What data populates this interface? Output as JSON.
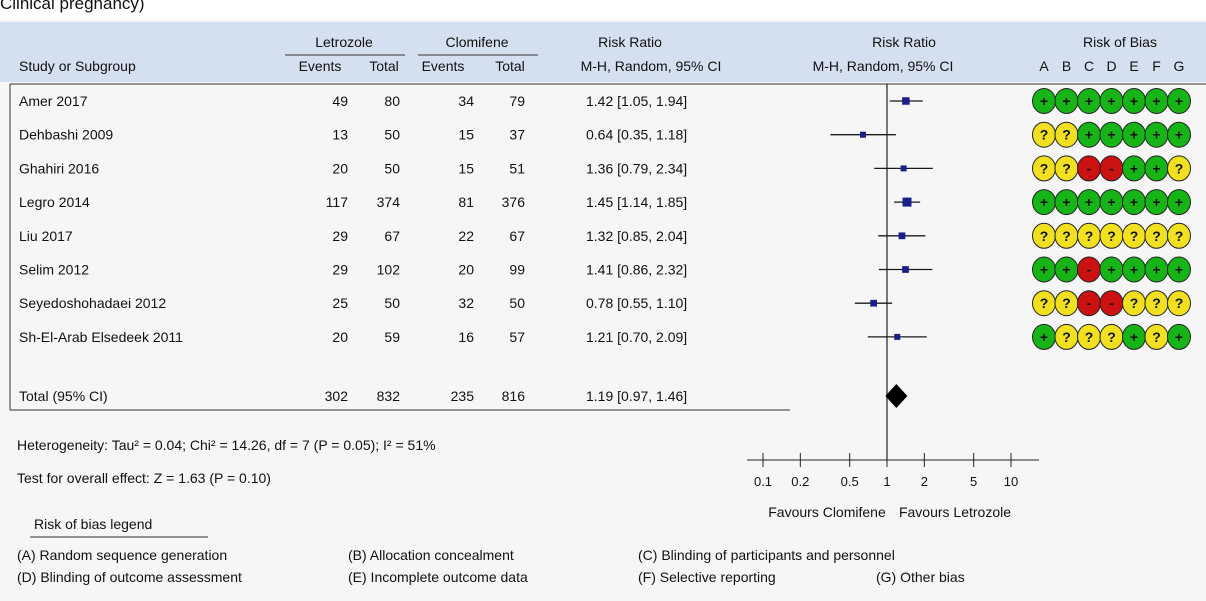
{
  "caption": "Clinical pregnancy)",
  "chart_data": {
    "type": "forest",
    "header": {
      "group_labels": [
        "Letrozole",
        "Clomifene",
        "Risk Ratio",
        "Risk Ratio",
        "Risk of Bias"
      ],
      "col_labels": [
        "Study or Subgroup",
        "Events",
        "Total",
        "Events",
        "Total",
        "M-H, Random, 95% CI",
        "M-H, Random, 95% CI"
      ],
      "bias_letters": [
        "A",
        "B",
        "C",
        "D",
        "E",
        "F",
        "G"
      ]
    },
    "studies": [
      {
        "name": "Amer 2017",
        "e1": "49",
        "t1": "80",
        "e2": "34",
        "t2": "79",
        "ci_text": "1.42 [1.05, 1.94]",
        "rr": 1.42,
        "lo": 1.05,
        "hi": 1.94,
        "weight": 3,
        "bias": [
          "+",
          "+",
          "+",
          "+",
          "+",
          "+",
          "+"
        ]
      },
      {
        "name": "Dehbashi 2009",
        "e1": "13",
        "t1": "50",
        "e2": "15",
        "t2": "37",
        "ci_text": "0.64 [0.35, 1.18]",
        "rr": 0.64,
        "lo": 0.35,
        "hi": 1.18,
        "weight": 2,
        "bias": [
          "?",
          "?",
          "+",
          "+",
          "+",
          "+",
          "+"
        ]
      },
      {
        "name": "Ghahiri 2016",
        "e1": "20",
        "t1": "50",
        "e2": "15",
        "t2": "51",
        "ci_text": "1.36 [0.79, 2.34]",
        "rr": 1.36,
        "lo": 0.79,
        "hi": 2.34,
        "weight": 2,
        "bias": [
          "?",
          "?",
          "-",
          "-",
          "+",
          "+",
          "?"
        ]
      },
      {
        "name": "Legro 2014",
        "e1": "117",
        "t1": "374",
        "e2": "81",
        "t2": "376",
        "ci_text": "1.45 [1.14, 1.85]",
        "rr": 1.45,
        "lo": 1.14,
        "hi": 1.85,
        "weight": 4,
        "bias": [
          "+",
          "+",
          "+",
          "+",
          "+",
          "+",
          "+"
        ]
      },
      {
        "name": "Liu 2017",
        "e1": "29",
        "t1": "67",
        "e2": "22",
        "t2": "67",
        "ci_text": "1.32 [0.85, 2.04]",
        "rr": 1.32,
        "lo": 0.85,
        "hi": 2.04,
        "weight": 2.5,
        "bias": [
          "?",
          "?",
          "?",
          "?",
          "?",
          "?",
          "?"
        ]
      },
      {
        "name": "Selim 2012",
        "e1": "29",
        "t1": "102",
        "e2": "20",
        "t2": "99",
        "ci_text": "1.41 [0.86, 2.32]",
        "rr": 1.41,
        "lo": 0.86,
        "hi": 2.32,
        "weight": 2.5,
        "bias": [
          "+",
          "+",
          "-",
          "+",
          "+",
          "+",
          "+"
        ]
      },
      {
        "name": "Seyedoshohadaei 2012",
        "e1": "25",
        "t1": "50",
        "e2": "32",
        "t2": "50",
        "ci_text": "0.78 [0.55, 1.10]",
        "rr": 0.78,
        "lo": 0.55,
        "hi": 1.1,
        "weight": 2.5,
        "bias": [
          "?",
          "?",
          "-",
          "-",
          "?",
          "?",
          "?"
        ]
      },
      {
        "name": "Sh-El-Arab Elsedeek 2011",
        "e1": "20",
        "t1": "59",
        "e2": "16",
        "t2": "57",
        "ci_text": "1.21 [0.70, 2.09]",
        "rr": 1.21,
        "lo": 0.7,
        "hi": 2.09,
        "weight": 2,
        "bias": [
          "+",
          "?",
          "?",
          "?",
          "+",
          "?",
          "+"
        ]
      }
    ],
    "total": {
      "name": "Total (95% CI)",
      "e1": "302",
      "t1": "832",
      "e2": "235",
      "t2": "816",
      "ci_text": "1.19 [0.97, 1.46]",
      "rr": 1.19,
      "lo": 0.97,
      "hi": 1.46
    },
    "heterogeneity": "Heterogeneity: Tau² = 0.04; Chi² = 14.26, df = 7 (P = 0.05); I² = 51%",
    "overall_effect": "Test for overall effect: Z = 1.63 (P = 0.10)",
    "x_axis": {
      "scale": "log",
      "range": [
        0.1,
        10
      ],
      "ticks": [
        0.1,
        0.2,
        0.5,
        1,
        2,
        5,
        10
      ],
      "tick_labels": [
        "0.1",
        "0.2",
        "0.5",
        "1",
        "2",
        "5",
        "10"
      ]
    },
    "favours_left": "Favours Clomifene",
    "favours_right": "Favours Letrozole",
    "legend_title": "Risk of bias legend",
    "legend_items": [
      "(A) Random sequence generation",
      "(B) Allocation concealment",
      "(C) Blinding of participants and personnel",
      "(D) Blinding of outcome assessment",
      "(E) Incomplete outcome data",
      "(F) Selective reporting",
      "(G) Other bias"
    ],
    "colors": {
      "low_risk": "#17b417",
      "unclear_risk": "#f0e020",
      "high_risk": "#cc1111",
      "marker": "#1b1f8a",
      "header_band": "#d4dff0"
    }
  }
}
